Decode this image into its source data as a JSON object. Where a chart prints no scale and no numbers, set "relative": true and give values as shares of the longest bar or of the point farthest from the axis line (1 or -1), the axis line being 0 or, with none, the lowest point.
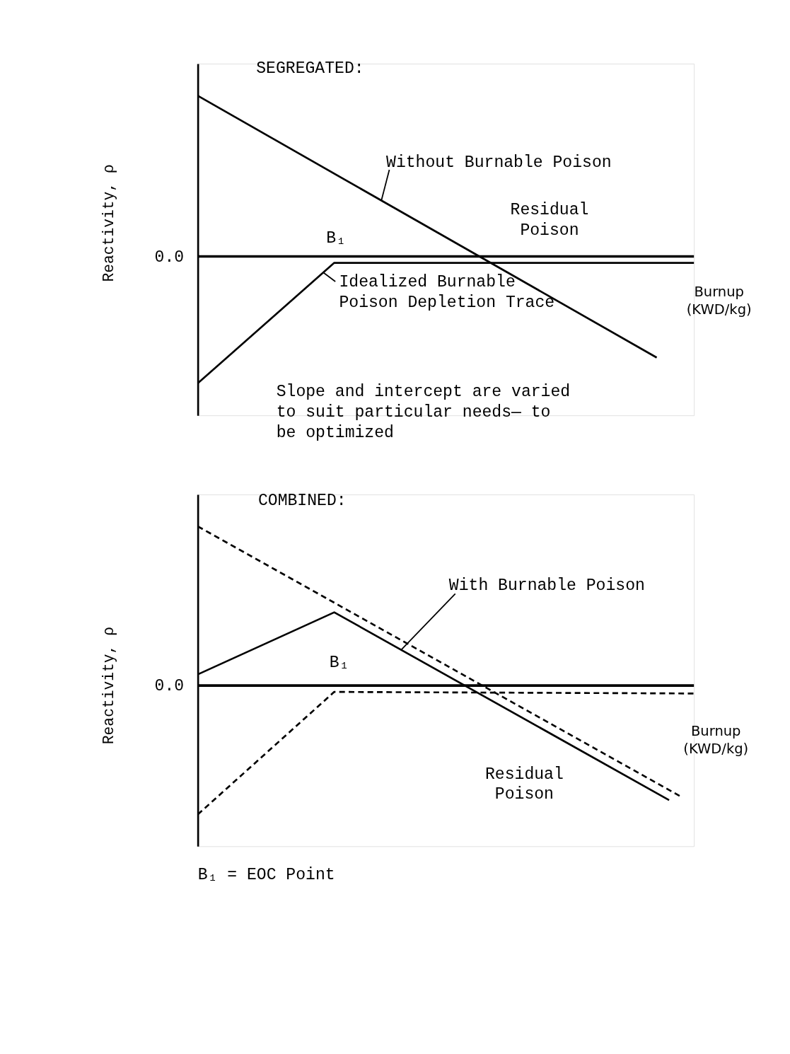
{
  "chart_data": [
    {
      "type": "line",
      "title": "SEGREGATED:",
      "xlabel": "Burnup (KWD/kg)",
      "ylabel": "Reactivity, ρ",
      "relative": true,
      "line_style": "solid",
      "categories": [
        null,
        null,
        null,
        null,
        null,
        null,
        null,
        null,
        null,
        null,
        null,
        null,
        null,
        null,
        null,
        null,
        null,
        null,
        null,
        null,
        null,
        null,
        null,
        null,
        null,
        null,
        null,
        null,
        null,
        null,
        null,
        null,
        null,
        null,
        null,
        null,
        null,
        null,
        null,
        null,
        null
      ],
      "series": [
        {
          "name": "Without Burnable Poison",
          "color": "#000000",
          "values": [
            1.0,
            null,
            null,
            null,
            null,
            null,
            null,
            null,
            null,
            null,
            null,
            null,
            null,
            null,
            null,
            null,
            null,
            null,
            null,
            null,
            null,
            null,
            null,
            null,
            null,
            null,
            null,
            null,
            null,
            null,
            null,
            null,
            null,
            null,
            null,
            null,
            null,
            -0.63,
            null,
            null,
            null
          ]
        },
        {
          "name": "Idealized Burnable Poison Depletion Trace",
          "color": "#000000",
          "values": [
            -0.79,
            null,
            null,
            null,
            null,
            null,
            null,
            null,
            null,
            null,
            null,
            -0.04,
            null,
            null,
            null,
            null,
            null,
            null,
            null,
            null,
            null,
            null,
            null,
            null,
            null,
            null,
            null,
            null,
            null,
            null,
            null,
            null,
            null,
            null,
            null,
            null,
            null,
            null,
            null,
            null,
            -0.04
          ]
        }
      ],
      "ref_lines": [
        {
          "axis": "y",
          "value": 0,
          "label": "0.0"
        }
      ],
      "annotations": [
        "B₁",
        "Residual Poison",
        "Slope and intercept are varied to suit particular needs— to be optimized"
      ]
    },
    {
      "type": "line",
      "title": "COMBINED:",
      "xlabel": "Burnup (KWD/kg)",
      "ylabel": "Reactivity, ρ",
      "relative": true,
      "categories": [
        null,
        null,
        null,
        null,
        null,
        null,
        null,
        null,
        null,
        null,
        null,
        null,
        null,
        null,
        null,
        null,
        null,
        null,
        null,
        null,
        null,
        null,
        null,
        null,
        null,
        null,
        null,
        null,
        null,
        null,
        null,
        null,
        null,
        null,
        null,
        null,
        null,
        null,
        null,
        null,
        null
      ],
      "series": [
        {
          "name": "With Burnable Poison",
          "color": "#000000",
          "line_style": "solid",
          "values": [
            0.07,
            null,
            null,
            null,
            null,
            null,
            null,
            null,
            null,
            null,
            null,
            0.46,
            null,
            null,
            null,
            null,
            null,
            null,
            null,
            null,
            null,
            null,
            null,
            null,
            null,
            null,
            null,
            null,
            null,
            null,
            null,
            null,
            null,
            null,
            null,
            null,
            null,
            null,
            -0.72,
            null,
            null
          ]
        },
        {
          "color": "#000000",
          "line_style": "dashed",
          "values": [
            1.0,
            null,
            null,
            null,
            null,
            null,
            null,
            null,
            null,
            null,
            null,
            null,
            null,
            null,
            null,
            null,
            null,
            null,
            null,
            null,
            null,
            null,
            null,
            null,
            null,
            null,
            null,
            null,
            null,
            null,
            null,
            null,
            null,
            null,
            null,
            null,
            null,
            null,
            null,
            -0.7,
            null
          ]
        },
        {
          "color": "#000000",
          "line_style": "dashed",
          "values": [
            -0.81,
            null,
            null,
            null,
            null,
            null,
            null,
            null,
            null,
            null,
            null,
            -0.04,
            null,
            null,
            null,
            null,
            null,
            null,
            null,
            null,
            null,
            null,
            null,
            null,
            null,
            null,
            null,
            null,
            null,
            null,
            null,
            null,
            null,
            null,
            null,
            null,
            null,
            null,
            null,
            null,
            -0.05
          ]
        }
      ],
      "ref_lines": [
        {
          "axis": "y",
          "value": 0,
          "label": "0.0"
        }
      ],
      "annotations": [
        "B₁",
        "Residual Poison",
        "B₁ = EOC Point"
      ]
    }
  ]
}
